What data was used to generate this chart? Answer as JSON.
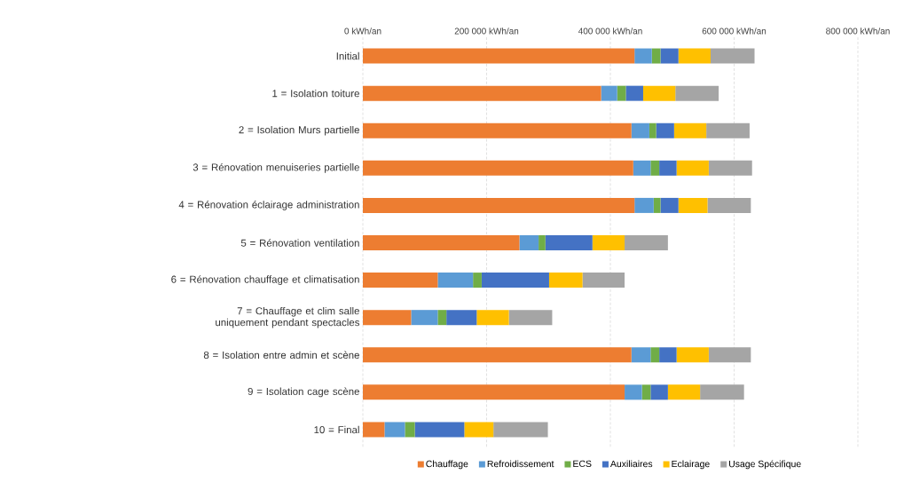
{
  "chart_data": {
    "type": "bar",
    "orientation": "horizontal",
    "stacked": true,
    "categories": [
      "Initial",
      "1 = Isolation toiture",
      "2 = Isolation Murs partielle",
      "3 = Rénovation menuiseries partielle",
      "4 = Rénovation éclairage administration",
      "5 = Rénovation ventilation",
      "6 = Rénovation chauffage et climatisation",
      "7 = Chauffage et clim salle uniquement pendant spectacles",
      "8 = Isolation entre admin et scène",
      "9 = Isolation cage scène",
      "10 = Final"
    ],
    "series": [
      {
        "name": "Chauffage",
        "color": "#ed7d31",
        "values": [
          439000,
          385000,
          434000,
          437000,
          439000,
          253000,
          121000,
          78000,
          434000,
          423000,
          35000
        ]
      },
      {
        "name": "Refroidissement",
        "color": "#5b9bd5",
        "values": [
          28000,
          26000,
          29000,
          28000,
          31000,
          31000,
          57000,
          43000,
          31000,
          28000,
          33000
        ]
      },
      {
        "name": "ECS",
        "color": "#70ad47",
        "values": [
          14000,
          14000,
          11000,
          14000,
          11000,
          11000,
          14000,
          14000,
          14000,
          14000,
          16000
        ]
      },
      {
        "name": "Auxiliaires",
        "color": "#4472c4",
        "values": [
          29000,
          28000,
          29000,
          28000,
          29000,
          76000,
          109000,
          49000,
          28000,
          28000,
          80000
        ]
      },
      {
        "name": "Eclairage",
        "color": "#ffc000",
        "values": [
          52000,
          52000,
          52000,
          52000,
          47000,
          52000,
          54000,
          52000,
          52000,
          52000,
          47000
        ]
      },
      {
        "name": "Usage Spécifique",
        "color": "#a5a5a5",
        "values": [
          71000,
          70000,
          70000,
          70000,
          70000,
          70000,
          68000,
          70000,
          68000,
          71000,
          88000
        ]
      }
    ],
    "xlim": [
      0,
      800000
    ],
    "xticks": [
      {
        "value": 0,
        "label": "0 kWh/an"
      },
      {
        "value": 200000,
        "label": "200 000 kWh/an"
      },
      {
        "value": 400000,
        "label": "400 000 kWh/an"
      },
      {
        "value": 600000,
        "label": "600 000 kWh/an"
      },
      {
        "value": 800000,
        "label": "800 000 kWh/an"
      }
    ],
    "grid": "x",
    "legend": "bottom"
  }
}
